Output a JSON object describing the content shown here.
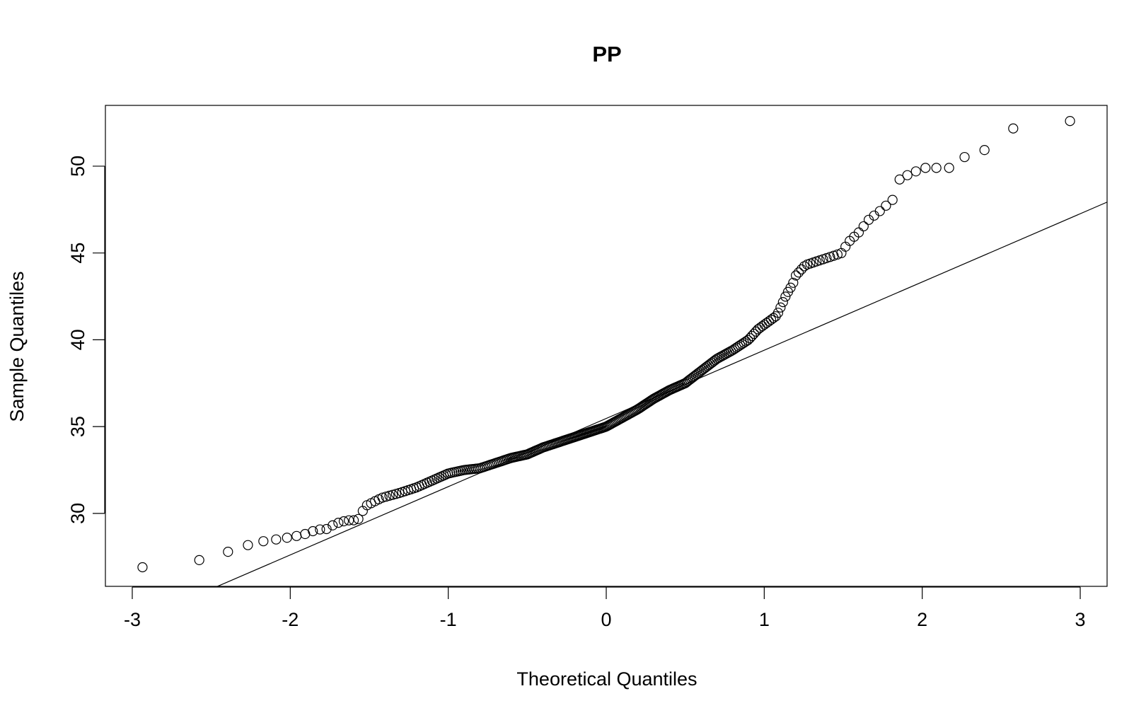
{
  "chart_data": {
    "type": "scatter",
    "title": "PP",
    "xlabel": "Theoretical Quantiles",
    "ylabel": "Sample Quantiles",
    "xlim": [
      -3.17,
      3.17
    ],
    "ylim": [
      25.8,
      53.5
    ],
    "x_ticks": [
      -3,
      -2,
      -1,
      0,
      1,
      2,
      3
    ],
    "y_ticks": [
      30,
      35,
      40,
      45,
      50
    ],
    "grid": false,
    "reference_line": {
      "slope": 3.93,
      "intercept": 35.47
    },
    "anchor_points": [
      [
        -2.93,
        26.9
      ],
      [
        -2.58,
        27.3
      ],
      [
        -2.39,
        27.8
      ],
      [
        -2.26,
        28.2
      ],
      [
        -2.17,
        28.4
      ],
      [
        -2.09,
        28.5
      ],
      [
        -2.02,
        28.6
      ],
      [
        -1.96,
        28.7
      ],
      [
        -1.91,
        28.8
      ],
      [
        -1.85,
        29.0
      ],
      [
        -1.8,
        29.1
      ],
      [
        -1.76,
        29.1
      ],
      [
        -1.72,
        29.4
      ],
      [
        -1.68,
        29.5
      ],
      [
        -1.64,
        29.6
      ],
      [
        -1.6,
        29.6
      ],
      [
        -1.56,
        29.7
      ],
      [
        -1.53,
        30.4
      ],
      [
        -1.42,
        30.9
      ],
      [
        -1.3,
        31.2
      ],
      [
        -1.2,
        31.5
      ],
      [
        -1.1,
        31.9
      ],
      [
        -1.0,
        32.3
      ],
      [
        -0.9,
        32.5
      ],
      [
        -0.8,
        32.6
      ],
      [
        -0.7,
        32.9
      ],
      [
        -0.6,
        33.2
      ],
      [
        -0.5,
        33.4
      ],
      [
        -0.4,
        33.8
      ],
      [
        -0.3,
        34.1
      ],
      [
        -0.2,
        34.4
      ],
      [
        -0.1,
        34.7
      ],
      [
        0.0,
        35.0
      ],
      [
        0.1,
        35.5
      ],
      [
        0.2,
        36.0
      ],
      [
        0.3,
        36.6
      ],
      [
        0.4,
        37.1
      ],
      [
        0.5,
        37.5
      ],
      [
        0.6,
        38.2
      ],
      [
        0.7,
        38.9
      ],
      [
        0.8,
        39.4
      ],
      [
        0.9,
        40.0
      ],
      [
        0.96,
        40.6
      ],
      [
        1.02,
        41.0
      ],
      [
        1.08,
        41.4
      ],
      [
        1.11,
        42.0
      ],
      [
        1.14,
        42.6
      ],
      [
        1.18,
        43.2
      ],
      [
        1.2,
        43.7
      ],
      [
        1.26,
        44.3
      ],
      [
        1.36,
        44.6
      ],
      [
        1.46,
        44.9
      ],
      [
        1.49,
        45.0
      ],
      [
        1.53,
        45.6
      ],
      [
        1.6,
        46.2
      ],
      [
        1.66,
        46.9
      ],
      [
        1.73,
        47.4
      ],
      [
        1.78,
        47.8
      ],
      [
        1.81,
        48.0
      ],
      [
        1.85,
        49.2
      ],
      [
        1.93,
        49.6
      ],
      [
        2.02,
        49.9
      ],
      [
        2.09,
        49.9
      ],
      [
        2.17,
        49.9
      ],
      [
        2.26,
        50.5
      ],
      [
        2.39,
        50.9
      ],
      [
        2.58,
        52.2
      ],
      [
        2.93,
        52.6
      ]
    ],
    "n_points": 300
  }
}
